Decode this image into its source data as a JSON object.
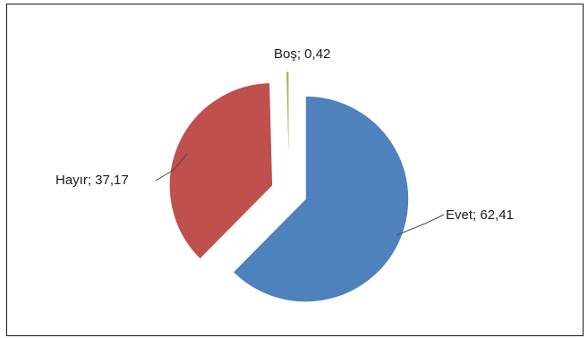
{
  "chart_data": {
    "type": "pie",
    "title": "",
    "slices": [
      {
        "label": "Evet",
        "value": 62.41,
        "text": "Evet; 62,41",
        "color": "#4f81bd"
      },
      {
        "label": "Hayır",
        "value": 37.17,
        "text": "Hayır; 37,17",
        "color": "#c0504d"
      },
      {
        "label": "Boş",
        "value": 0.42,
        "text": "Boş; 0,42",
        "color": "#9bbb59"
      }
    ],
    "exploded": true,
    "legend": "none"
  }
}
